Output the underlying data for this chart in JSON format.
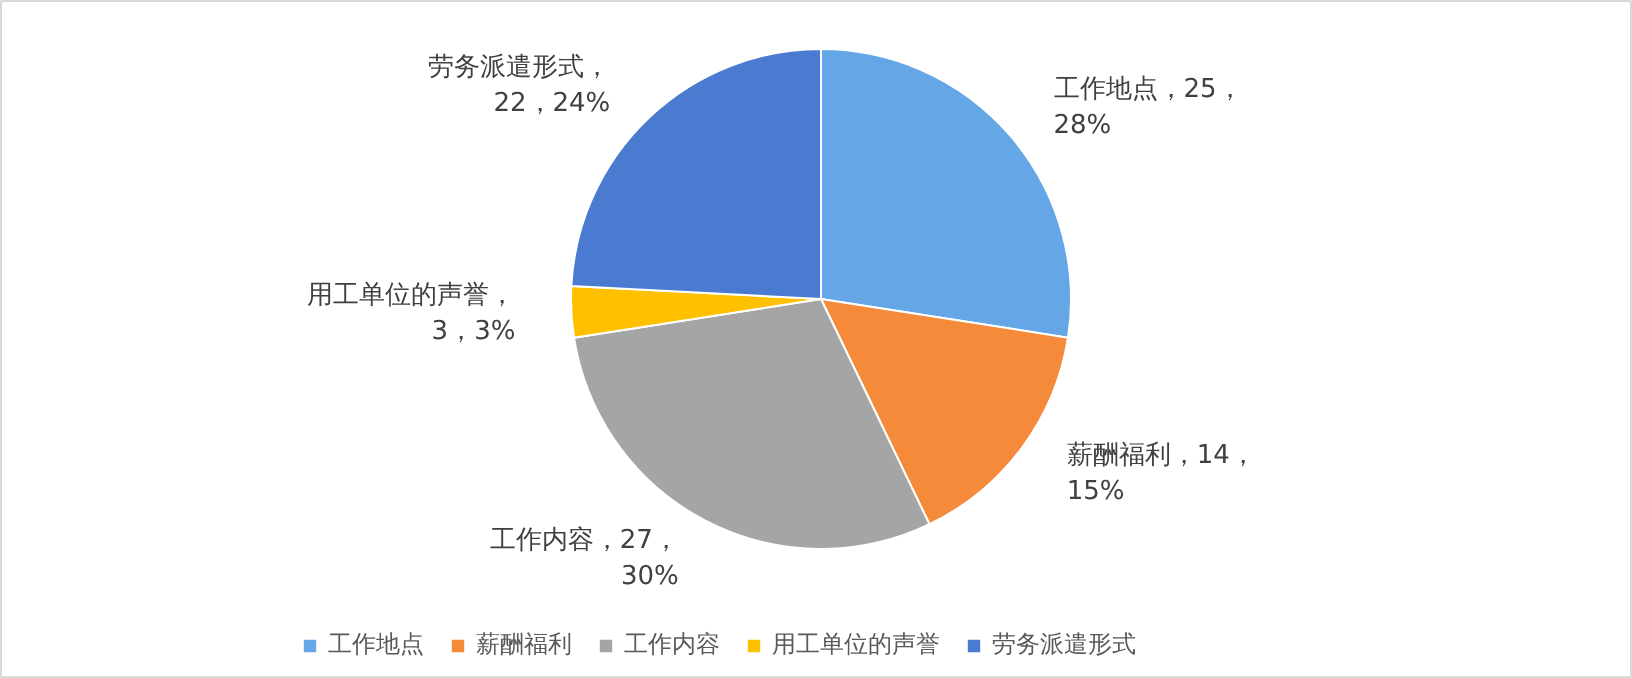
{
  "chart_data": {
    "type": "pie",
    "categories": [
      "工作地点",
      "薪酬福利",
      "工作内容",
      "用工单位的声誉",
      "劳务派遣形式"
    ],
    "values": [
      25,
      14,
      27,
      3,
      22
    ],
    "colors": [
      "#64a6e6",
      "#f58a3a",
      "#a5a5a5",
      "#ffc000",
      "#4a7bd0"
    ],
    "value_labels": [
      "工作地点，25，\n28%",
      "薪酬福利，14，\n15%",
      "工作内容，27，\n30%",
      "用工单位的声誉，\n3，3%",
      "劳务派遣形式，\n22，24%"
    ],
    "legend": "bottom"
  }
}
